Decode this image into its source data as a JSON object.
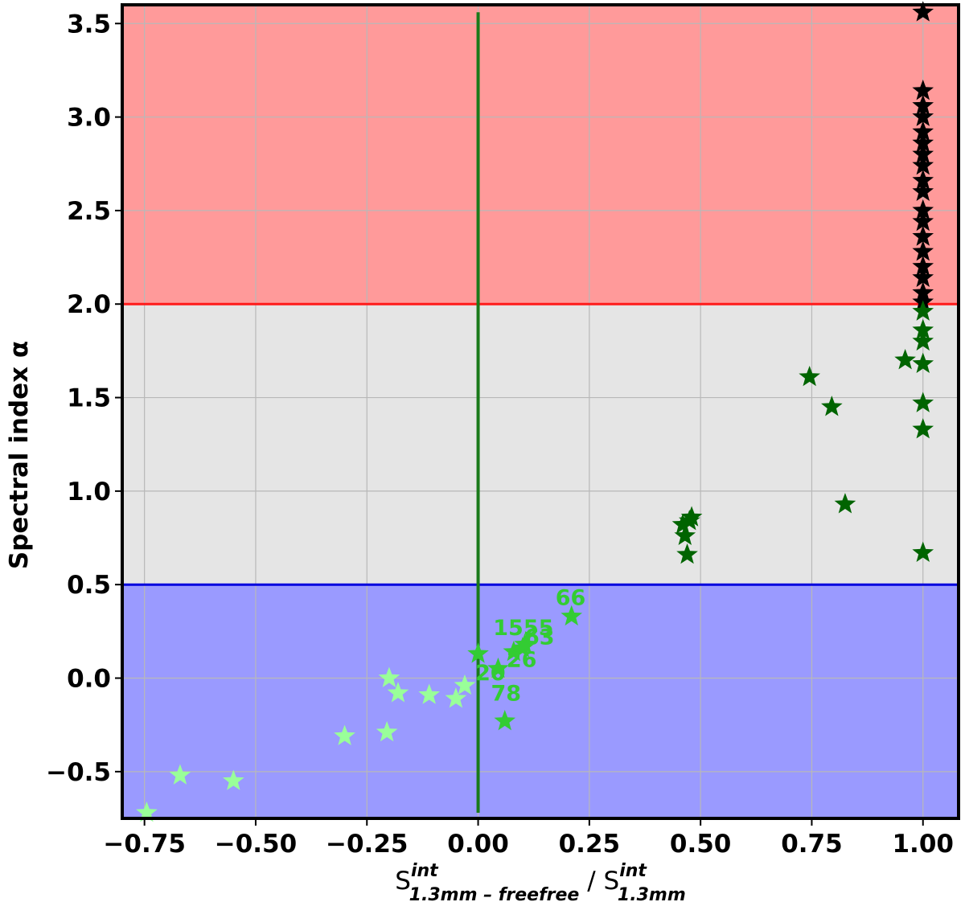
{
  "chart_data": {
    "type": "scatter",
    "xlabel": {
      "base": "S",
      "sup": "int",
      "sub": "1.3mm – freefree",
      "sep": " / ",
      "base2": "S",
      "sup2": "int",
      "sub2": "1.3mm"
    },
    "ylabel": "Spectral index α",
    "xlim": [
      -0.8,
      1.08
    ],
    "ylim": [
      -0.75,
      3.6
    ],
    "x_ticks": [
      -0.75,
      -0.5,
      -0.25,
      0.0,
      0.25,
      0.5,
      0.75,
      1.0
    ],
    "x_tick_labels": [
      "−0.75",
      "−0.50",
      "−0.25",
      "0.00",
      "0.25",
      "0.50",
      "0.75",
      "1.00"
    ],
    "y_ticks": [
      -0.5,
      0.0,
      0.5,
      1.0,
      1.5,
      2.0,
      2.5,
      3.0,
      3.5
    ],
    "y_tick_labels": [
      "−0.5",
      "0.0",
      "0.5",
      "1.0",
      "1.5",
      "2.0",
      "2.5",
      "3.0",
      "3.5"
    ],
    "grid": true,
    "bands": [
      {
        "y0": 2.0,
        "y1": 3.6,
        "color": "#ff9a9a"
      },
      {
        "y0": 0.5,
        "y1": 2.0,
        "color": "#e5e5e5"
      },
      {
        "y0": -0.75,
        "y1": 0.5,
        "color": "#9a9aff"
      }
    ],
    "hlines": [
      {
        "y": 2.0,
        "color": "#ff1a1a"
      },
      {
        "y": 0.5,
        "color": "#0000dd"
      }
    ],
    "vline": {
      "x": 0.0,
      "y0": -0.72,
      "y1": 3.56,
      "color": "#1a7a1a"
    },
    "series": [
      {
        "color": "#000000",
        "points": [
          [
            1.0,
            3.56
          ],
          [
            1.0,
            3.14
          ],
          [
            1.0,
            3.06
          ],
          [
            1.0,
            3.0
          ],
          [
            1.0,
            2.92
          ],
          [
            1.0,
            2.86
          ],
          [
            1.0,
            2.8
          ],
          [
            1.0,
            2.74
          ],
          [
            1.0,
            2.66
          ],
          [
            1.0,
            2.6
          ],
          [
            1.0,
            2.5
          ],
          [
            1.0,
            2.44
          ],
          [
            1.0,
            2.36
          ],
          [
            1.0,
            2.28
          ],
          [
            1.0,
            2.2
          ],
          [
            1.0,
            2.14
          ],
          [
            1.0,
            2.06
          ],
          [
            1.0,
            2.01
          ]
        ]
      },
      {
        "color": "#006400",
        "points": [
          [
            1.0,
            1.96
          ],
          [
            1.0,
            1.86
          ],
          [
            1.0,
            1.8
          ],
          [
            0.96,
            1.7
          ],
          [
            1.0,
            1.68
          ],
          [
            0.745,
            1.61
          ],
          [
            1.0,
            1.47
          ],
          [
            0.795,
            1.45
          ],
          [
            1.0,
            1.33
          ],
          [
            0.825,
            0.93
          ],
          [
            0.48,
            0.86
          ],
          [
            0.475,
            0.84
          ],
          [
            0.46,
            0.82
          ],
          [
            0.465,
            0.76
          ],
          [
            0.47,
            0.66
          ],
          [
            1.0,
            0.67
          ]
        ]
      },
      {
        "color": "#33cc33",
        "points": [
          [
            0.21,
            0.33
          ],
          [
            0.0,
            0.13
          ],
          [
            0.08,
            0.14
          ],
          [
            0.1,
            0.16
          ],
          [
            0.105,
            0.18
          ],
          [
            0.045,
            0.05
          ],
          [
            0.06,
            -0.23
          ]
        ]
      },
      {
        "color": "#99ff99",
        "points": [
          [
            -0.2,
            0.0
          ],
          [
            -0.18,
            -0.08
          ],
          [
            -0.11,
            -0.09
          ],
          [
            -0.03,
            -0.04
          ],
          [
            -0.05,
            -0.11
          ],
          [
            -0.3,
            -0.31
          ],
          [
            -0.205,
            -0.29
          ],
          [
            -0.67,
            -0.52
          ],
          [
            -0.55,
            -0.55
          ],
          [
            -0.745,
            -0.72
          ]
        ]
      }
    ],
    "annotations": [
      {
        "text": "66",
        "x": 0.21,
        "y": 0.33,
        "color": "#33cc33"
      },
      {
        "text": "1555",
        "x": 0.07,
        "y": 0.17,
        "color": "#33cc33"
      },
      {
        "text": "63",
        "x": 0.14,
        "y": 0.12,
        "color": "#33cc33"
      },
      {
        "text": "26",
        "x": 0.1,
        "y": 0.0,
        "color": "#33cc33"
      },
      {
        "text": "20",
        "x": 0.03,
        "y": -0.07,
        "color": "#33cc33"
      },
      {
        "text": "78",
        "x": 0.065,
        "y": -0.18,
        "color": "#33cc33"
      }
    ]
  }
}
